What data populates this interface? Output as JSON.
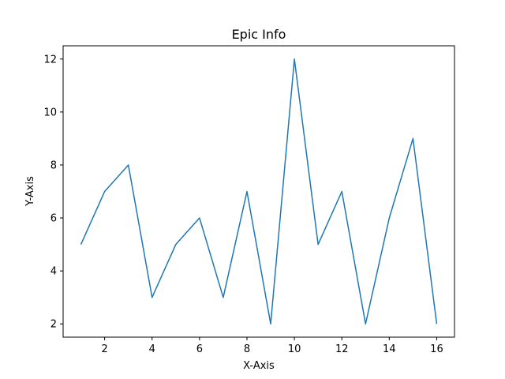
{
  "chart_data": {
    "type": "line",
    "title": "Epic Info",
    "xlabel": "X-Axis",
    "ylabel": "Y-Axis",
    "xlim": [
      0.25,
      16.75
    ],
    "ylim": [
      1.5,
      12.5
    ],
    "xticks": [
      2,
      4,
      6,
      8,
      10,
      12,
      14,
      16
    ],
    "yticks": [
      2,
      4,
      6,
      8,
      10,
      12
    ],
    "grid": false,
    "series": [
      {
        "x": [
          1,
          2,
          3,
          4,
          5,
          6,
          7,
          8,
          9,
          10,
          11,
          12,
          13,
          14,
          15,
          16
        ],
        "y": [
          5,
          7,
          8,
          3,
          5,
          6,
          3,
          7,
          2,
          12,
          5,
          7,
          2,
          6,
          9,
          2
        ],
        "color": "#1f77b4"
      }
    ]
  }
}
